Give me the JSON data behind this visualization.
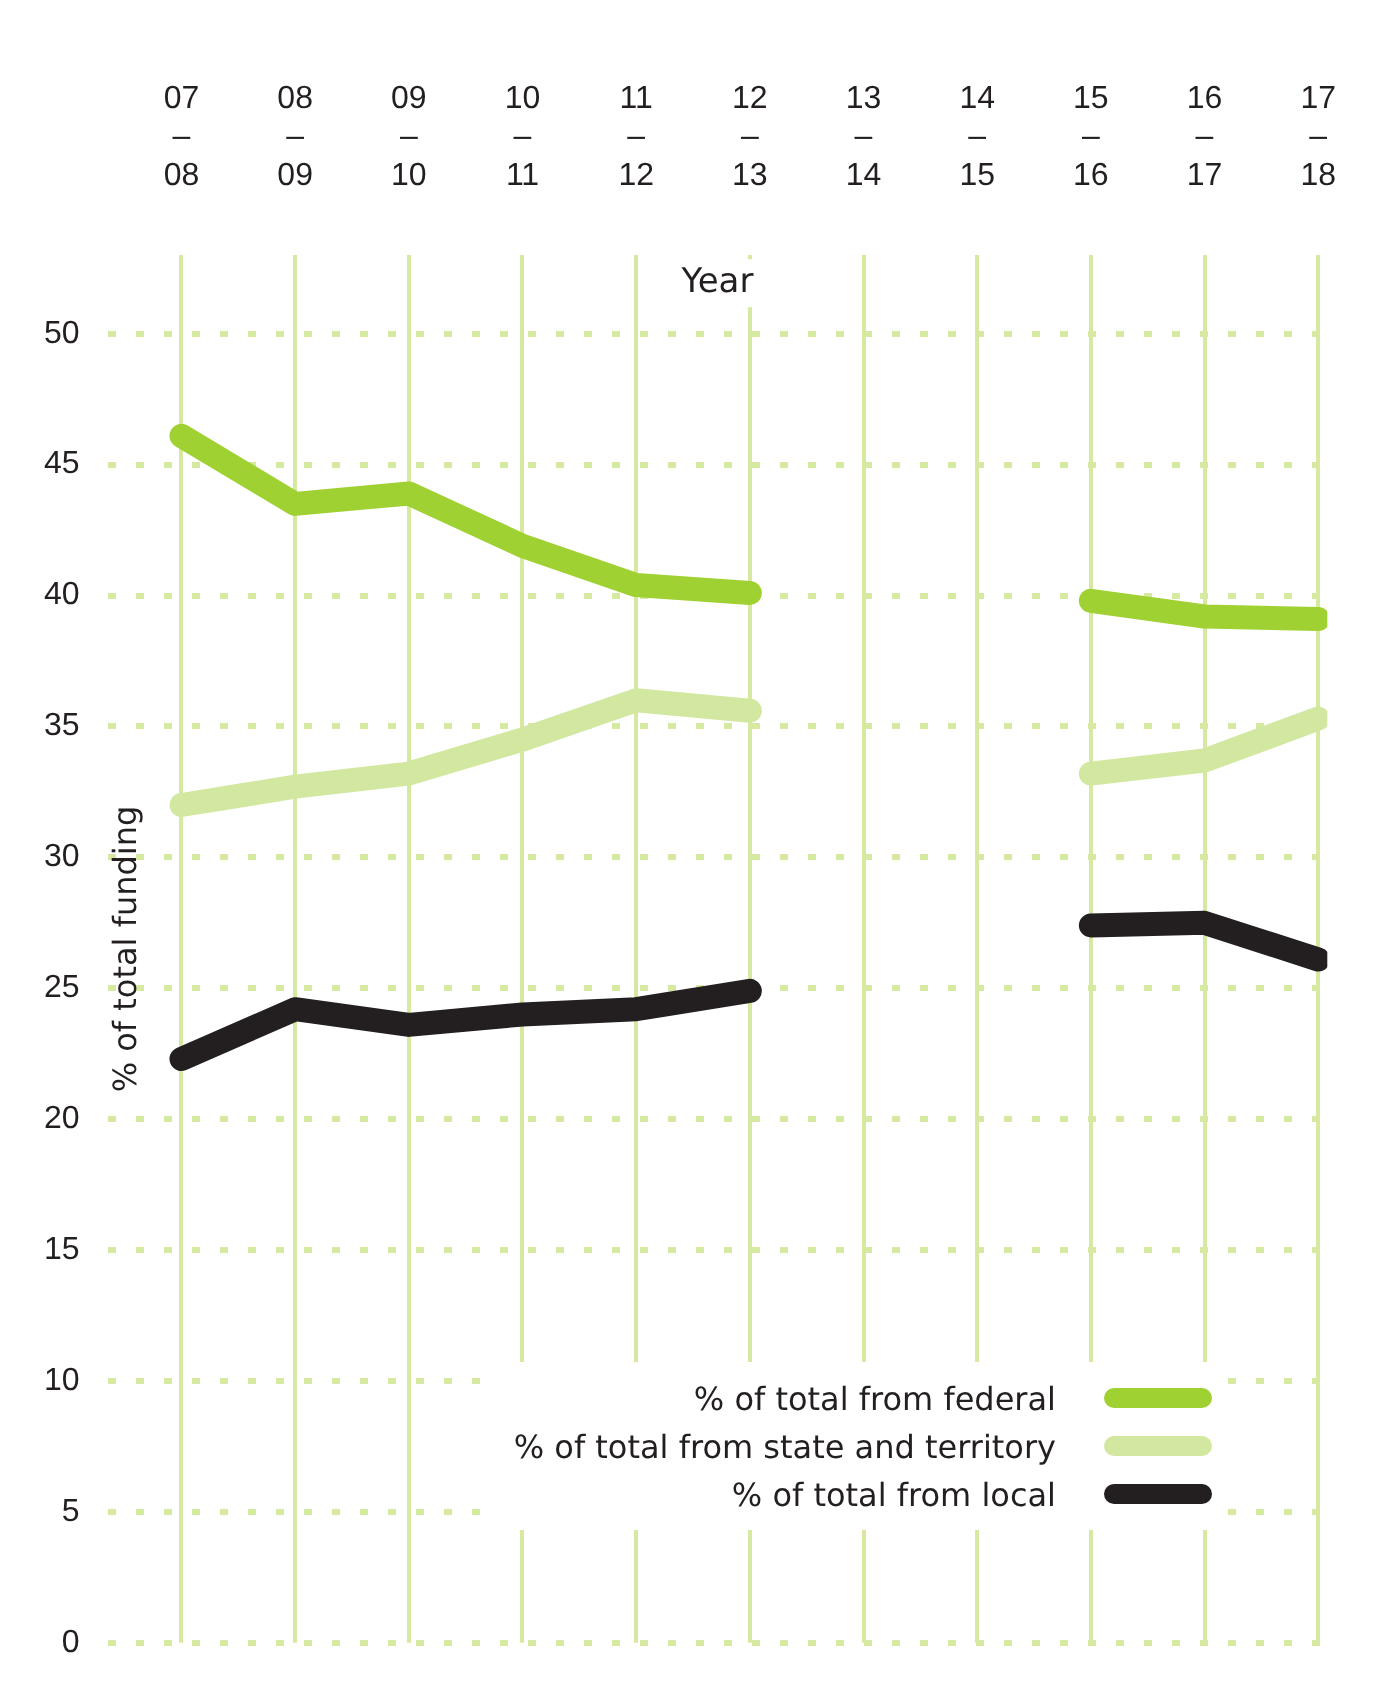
{
  "chart_data": {
    "type": "line",
    "xlabel": "Year",
    "ylabel": "% of total funding",
    "categories": [
      "07–08",
      "08–09",
      "09–10",
      "10–11",
      "11–12",
      "12–13",
      "13–14",
      "14–15",
      "15–16",
      "16–17",
      "17–18"
    ],
    "series": [
      {
        "name": "% of total from federal",
        "color": "#9fd132",
        "values": [
          46.1,
          43.5,
          43.9,
          41.9,
          40.4,
          40.1,
          null,
          null,
          39.8,
          39.2,
          39.1
        ]
      },
      {
        "name": "% of total from state and territory",
        "color": "#d2e8a0",
        "values": [
          32.0,
          32.7,
          33.2,
          34.5,
          36.0,
          35.6,
          null,
          null,
          33.2,
          33.7,
          35.3
        ]
      },
      {
        "name": "% of total from local",
        "color": "#231f20",
        "values": [
          22.3,
          24.2,
          23.6,
          24.0,
          24.2,
          24.9,
          null,
          null,
          27.4,
          27.5,
          26.1
        ]
      }
    ],
    "ylim": [
      0,
      53
    ],
    "yticks": [
      0,
      5,
      10,
      15,
      20,
      25,
      30,
      35,
      40,
      45,
      50
    ],
    "grid": true,
    "legend": "bottom right"
  }
}
